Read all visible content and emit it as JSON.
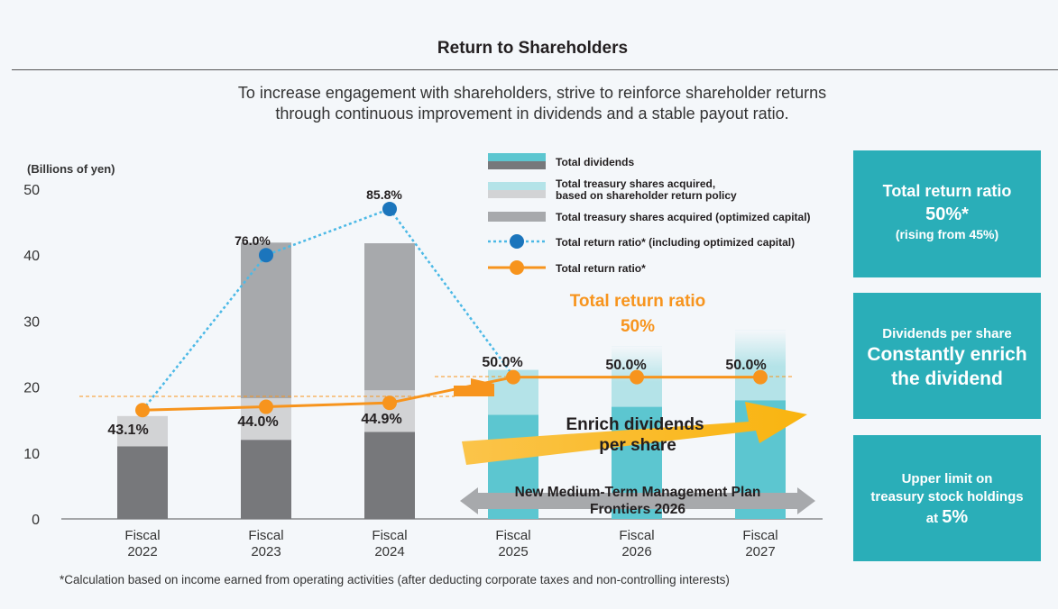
{
  "header": {
    "title": "Return to Shareholders",
    "subtitle_line1": "To increase engagement with shareholders, strive to reinforce shareholder returns",
    "subtitle_line2": "through continuous improvement in dividends and a stable payout ratio."
  },
  "chart_data": {
    "type": "bar",
    "ylabel": "(Billions of yen)",
    "ylim": [
      0,
      50
    ],
    "yticks": [
      0,
      10,
      20,
      30,
      40,
      50
    ],
    "categories": [
      {
        "line1": "Fiscal",
        "line2": "2022"
      },
      {
        "line1": "Fiscal",
        "line2": "2023"
      },
      {
        "line1": "Fiscal",
        "line2": "2024"
      },
      {
        "line1": "Fiscal",
        "line2": "2025"
      },
      {
        "line1": "Fiscal",
        "line2": "2026"
      },
      {
        "line1": "Fiscal",
        "line2": "2027"
      }
    ],
    "series": [
      {
        "name": "Total dividends",
        "color": "#77787b",
        "forecast_color": "#5cc6d0",
        "values": [
          11,
          12,
          13.2,
          15.8,
          17,
          18
        ]
      },
      {
        "name_line1": "Total treasury shares acquired,",
        "name_line2": "based on shareholder return policy",
        "color": "#d2d3d5",
        "forecast_color": "#b4e3e8",
        "values": [
          4.6,
          6.3,
          6.3,
          6.8,
          9.2,
          10.6
        ]
      },
      {
        "name": "Total treasury shares acquired (optimized capital)",
        "color": "#a7a9ac",
        "values": [
          0,
          23.6,
          22.3,
          0,
          0,
          0
        ]
      }
    ],
    "forecast_from_index": 3,
    "lines": [
      {
        "name": "Total return ratio* (including optimized capital)",
        "color": "#4cb9e6",
        "marker_color": "#1b75bc",
        "style": "dotted",
        "positions": [
          16.5,
          40.0,
          47.0,
          21.7
        ],
        "labels": [
          "",
          "76.0%",
          "85.8%",
          ""
        ]
      },
      {
        "name": "Total return ratio*",
        "color": "#f7941d",
        "style": "solid",
        "positions": [
          16.5,
          17.0,
          17.6,
          21.5,
          21.5,
          21.5
        ],
        "labels": [
          "43.1%",
          "44.0%",
          "44.9%",
          "50.0%",
          "50.0%",
          "50.0%"
        ]
      }
    ],
    "annotations": {
      "ratio_target_line1": "Total return ratio",
      "ratio_target_line2": "50%",
      "enrich_line1": "Enrich dividends",
      "enrich_line2": "per share",
      "plan_line1": "New Medium-Term Management Plan",
      "plan_line2": "Frontiers 2026"
    }
  },
  "boxes": [
    {
      "line1": "Total return ratio",
      "line2": "50%*",
      "line3": "(rising from 45%)"
    },
    {
      "line1": "Dividends per share",
      "line2": "Constantly enrich",
      "line3": "the dividend"
    },
    {
      "line1": "Upper limit on",
      "line2": "treasury stock holdings",
      "line3_prefix": "at ",
      "line3_value": "5%"
    }
  ],
  "footnote": "*Calculation based on income earned from operating activities (after deducting corporate taxes and non-controlling interests)"
}
